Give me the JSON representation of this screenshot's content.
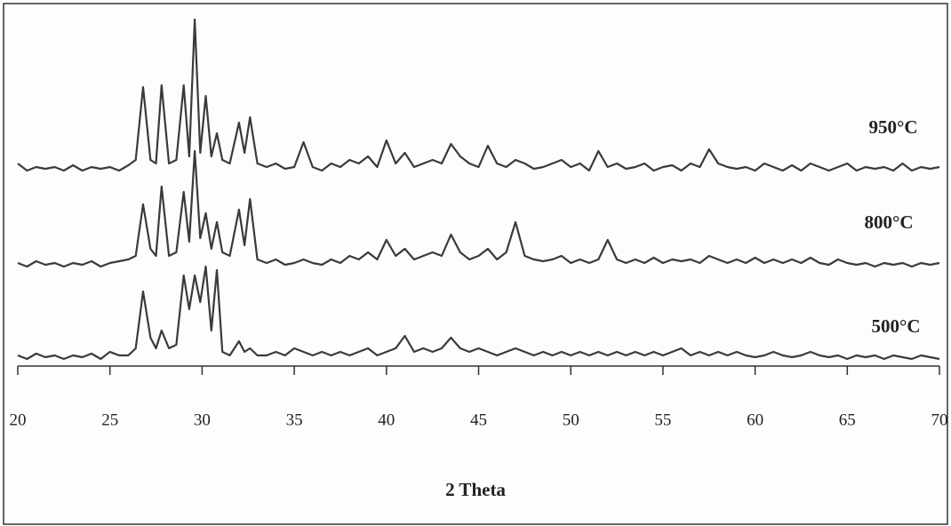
{
  "chart_data": {
    "type": "line",
    "x_label": "2 Theta",
    "xlim": [
      20,
      70
    ],
    "xticks": [
      20,
      25,
      30,
      35,
      40,
      45,
      50,
      55,
      60,
      65,
      70
    ],
    "ylim": [
      0,
      100
    ],
    "x": [
      20,
      20.5,
      21,
      21.5,
      22,
      22.5,
      23,
      23.5,
      24,
      24.5,
      25,
      25.5,
      26,
      26.4,
      26.8,
      27.2,
      27.5,
      27.8,
      28.2,
      28.6,
      29.0,
      29.3,
      29.6,
      29.9,
      30.2,
      30.5,
      30.8,
      31.1,
      31.5,
      32.0,
      32.3,
      32.6,
      33.0,
      33.5,
      34,
      34.5,
      35,
      35.5,
      36,
      36.5,
      37,
      37.5,
      38,
      38.5,
      39,
      39.5,
      40,
      40.5,
      41,
      41.5,
      42,
      42.5,
      43,
      43.5,
      44,
      44.5,
      45,
      45.5,
      46,
      46.5,
      47,
      47.5,
      48,
      48.5,
      49,
      49.5,
      50,
      50.5,
      51,
      51.5,
      52,
      52.5,
      53,
      53.5,
      54,
      54.5,
      55,
      55.5,
      56,
      56.5,
      57,
      57.5,
      58,
      58.5,
      59,
      59.5,
      60,
      60.5,
      61,
      61.5,
      62,
      62.5,
      63,
      63.5,
      64,
      64.5,
      65,
      65.5,
      66,
      66.5,
      67,
      67.5,
      68,
      68.5,
      69,
      69.5,
      70
    ],
    "series": [
      {
        "name": "950°C",
        "color": "#3a3a3a",
        "values": [
          57,
          55,
          56,
          55.5,
          56,
          55,
          56.5,
          55,
          56,
          55.5,
          56,
          55,
          56.5,
          58,
          78.5,
          58,
          57,
          79,
          57,
          58,
          79,
          59,
          97.5,
          60,
          76,
          59,
          65.5,
          58,
          57,
          68.5,
          60,
          70,
          57,
          56,
          57,
          55.5,
          56,
          63,
          56,
          55,
          57,
          56,
          58,
          57,
          59,
          56,
          63.5,
          57,
          60,
          56,
          57,
          58,
          57,
          62.5,
          59,
          57,
          56,
          62,
          57,
          56,
          58,
          57,
          55.5,
          56,
          57,
          58,
          56,
          57,
          55,
          60.5,
          56,
          57,
          55.5,
          56,
          57,
          55,
          56,
          56.5,
          55,
          57,
          56,
          61,
          57,
          56,
          55.5,
          56,
          55,
          57,
          56,
          55,
          56.5,
          55,
          57,
          56,
          55,
          56,
          57,
          55,
          56,
          55.5,
          56,
          55,
          57,
          55,
          56,
          55.5,
          56
        ]
      },
      {
        "name": "800°C",
        "color": "#3a3a3a",
        "values": [
          29,
          28,
          29.5,
          28.5,
          29,
          28,
          29,
          28.5,
          29.5,
          28,
          29,
          29.5,
          30,
          31,
          45.5,
          33,
          31,
          50.5,
          31,
          32,
          49,
          35,
          60.5,
          36,
          43,
          33,
          40.5,
          32,
          31,
          44,
          34,
          47,
          30,
          29,
          30,
          28.5,
          29,
          30,
          29,
          28.5,
          30,
          29,
          31,
          30,
          32,
          30,
          35.5,
          31,
          33,
          30,
          31,
          32,
          31,
          37,
          32,
          30,
          31,
          33,
          30,
          32,
          40.5,
          31,
          30,
          29.5,
          30,
          31,
          29,
          30,
          29,
          30,
          35.5,
          30,
          29,
          30,
          29,
          30.5,
          29,
          30,
          29.5,
          30,
          29,
          31,
          30,
          29,
          30,
          29,
          30.5,
          29,
          30,
          29,
          30,
          29,
          30.5,
          29,
          28.5,
          30,
          29,
          28.5,
          29,
          28,
          29,
          28.5,
          29,
          28,
          29,
          28.5,
          29
        ]
      },
      {
        "name": "500°C",
        "color": "#3a3a3a",
        "values": [
          3,
          2,
          3.5,
          2.5,
          3,
          2,
          3,
          2.5,
          3.5,
          2,
          4,
          3,
          3,
          5,
          21,
          8,
          5,
          10,
          5,
          6,
          25.5,
          16,
          25.5,
          18,
          28,
          10,
          27,
          4,
          3,
          7,
          4,
          5,
          3,
          3,
          4,
          3,
          5,
          4,
          3,
          4,
          3,
          4,
          3,
          4,
          5,
          3,
          4,
          5,
          8.5,
          4,
          5,
          4,
          5,
          8,
          5,
          4,
          5,
          4,
          3,
          4,
          5,
          4,
          3,
          4,
          3,
          4,
          3,
          4,
          3,
          4,
          3,
          4,
          3,
          4,
          3,
          4,
          3,
          4,
          5,
          3,
          4,
          3,
          4,
          3,
          4,
          3,
          2.5,
          3,
          4,
          3,
          2.5,
          3,
          4,
          3,
          2.5,
          3,
          2,
          3,
          2.5,
          3,
          2,
          3,
          2.5,
          2,
          3,
          2.5,
          2
        ]
      }
    ]
  }
}
